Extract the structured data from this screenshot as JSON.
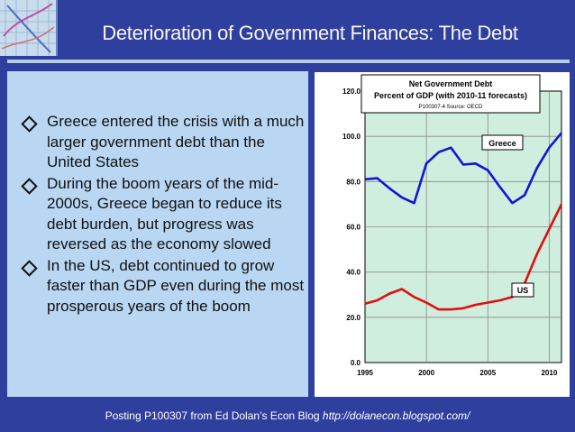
{
  "slide": {
    "title": "Deterioration of Government Finances: The Debt",
    "bullets": [
      "Greece entered the crisis with a much larger government debt than the United States",
      "During the boom years of the mid-2000s, Greece began to reduce its debt burden, but progress was reversed as the economy slowed",
      "In the US, debt continued to grow faster than GDP even during the most prosperous years of the boom"
    ],
    "footer_text": "Posting P100307 from Ed Dolan’s Econ Blog",
    "footer_url": "http://dolanecon.blogspot.com/"
  },
  "colors": {
    "background": "#2f3f9e",
    "panel": "#b9d6f2",
    "plot_area": "#cfeedd",
    "greece": "#1414d8",
    "us": "#e00f0f"
  },
  "chart_data": {
    "type": "line",
    "title": "Net Government Debt",
    "subtitle": "Percent of GDP (with 2010-11 forecasts)",
    "source": "P100307-4 Source: OECD",
    "xlim": [
      1995,
      2011
    ],
    "ylim": [
      0,
      120
    ],
    "x_ticks": [
      "1995",
      "2000",
      "2005",
      "2010"
    ],
    "y_ticks": [
      "0.0",
      "20.0",
      "40.0",
      "60.0",
      "80.0",
      "100.0",
      "120.0"
    ],
    "grid": true,
    "series": [
      {
        "name": "Greece",
        "x": [
          1995,
          1996,
          1997,
          1998,
          1999,
          2000,
          2001,
          2002,
          2003,
          2004,
          2005,
          2006,
          2007,
          2008,
          2009,
          2010,
          2011
        ],
        "values": [
          81,
          81.5,
          77,
          73,
          70.5,
          88,
          93,
          95,
          87.5,
          88,
          85,
          77.5,
          70.5,
          74,
          86,
          95,
          101.5
        ]
      },
      {
        "name": "US",
        "x": [
          1995,
          1996,
          1997,
          1998,
          1999,
          2000,
          2001,
          2002,
          2003,
          2004,
          2005,
          2006,
          2007,
          2008,
          2009,
          2010,
          2011
        ],
        "values": [
          26,
          27.5,
          30.5,
          32.5,
          29,
          26.5,
          23.5,
          23.5,
          24,
          25.5,
          26.5,
          27.5,
          29,
          35,
          48,
          59,
          70
        ]
      }
    ]
  }
}
